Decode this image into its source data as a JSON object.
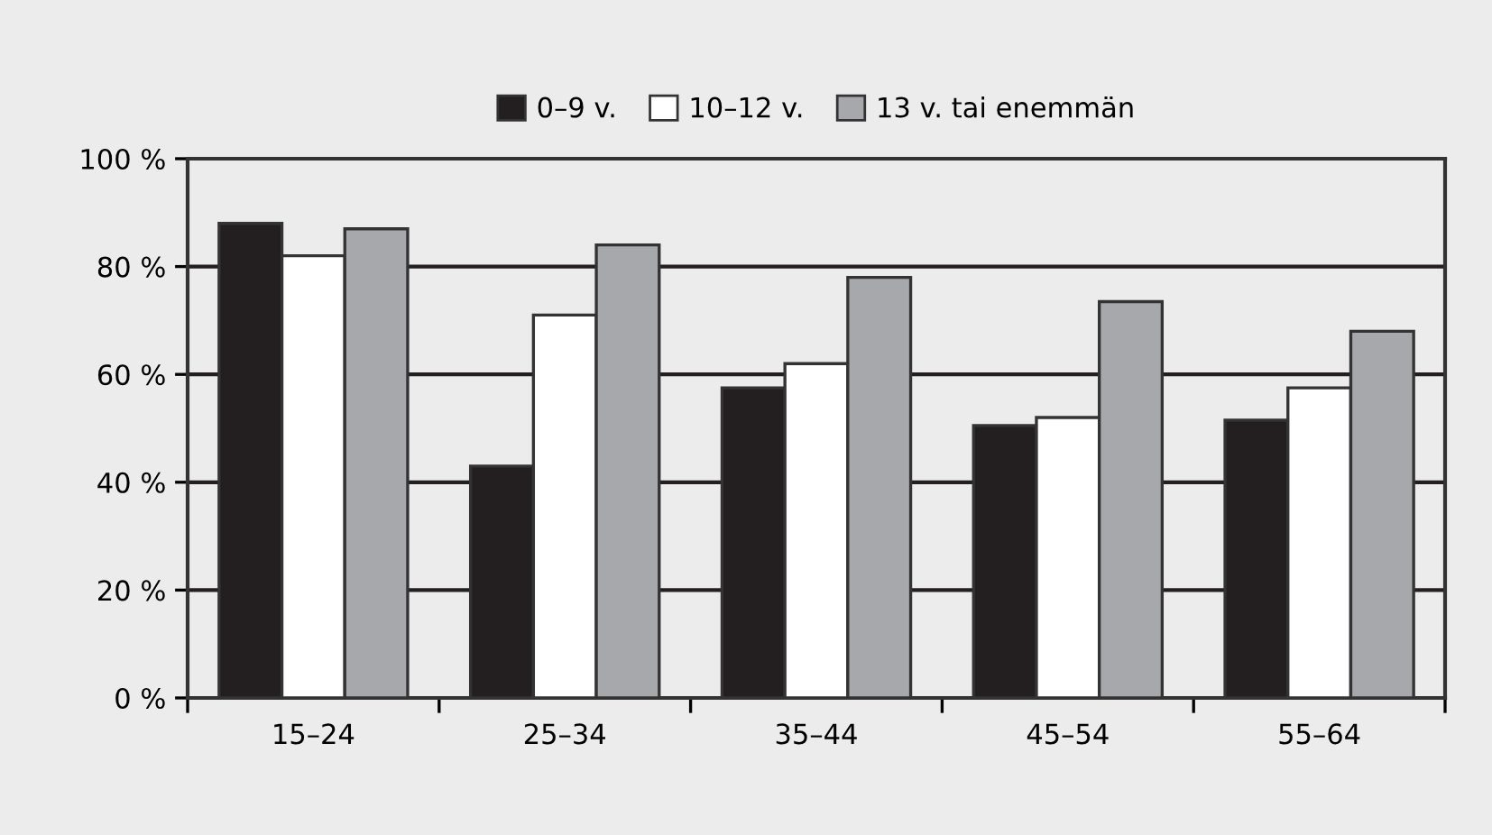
{
  "chart_data": {
    "type": "bar",
    "categories": [
      "15–24",
      "25–34",
      "35–44",
      "45–54",
      "55–64"
    ],
    "series": [
      {
        "name": "0–9 v.",
        "color": "#231f20",
        "values": [
          88,
          43,
          57.5,
          50.5,
          51.5
        ]
      },
      {
        "name": "10–12 v.",
        "color": "#ffffff",
        "values": [
          82,
          71,
          62,
          52,
          57.5
        ]
      },
      {
        "name": "13 v. tai enemmän",
        "color": "#a7a8ab",
        "values": [
          87,
          84,
          78,
          73.5,
          68
        ]
      }
    ],
    "ylim": [
      0,
      100
    ],
    "yticks": [
      {
        "value": 0,
        "label": "0 %"
      },
      {
        "value": 20,
        "label": "20 %"
      },
      {
        "value": 40,
        "label": "40 %"
      },
      {
        "value": 60,
        "label": "60 %"
      },
      {
        "value": 80,
        "label": "80 %"
      },
      {
        "value": 100,
        "label": "100 %"
      }
    ],
    "grid": "y",
    "legend": "top"
  }
}
